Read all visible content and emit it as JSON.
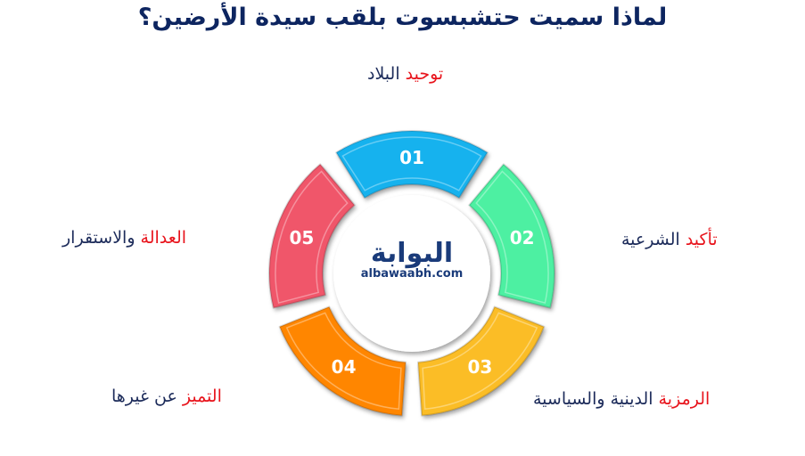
{
  "title": "لماذا سميت حتشبسوت بلقب سيدة الأرضين؟",
  "segments": [
    {
      "num": "01",
      "color": "#19b2ee",
      "label_hl": "توحيد",
      "label_rest": "البلاد"
    },
    {
      "num": "02",
      "color": "#4df0a2",
      "label_hl": "تأكيد",
      "label_rest": "الشرعية"
    },
    {
      "num": "03",
      "color": "#fbbd26",
      "label_hl": "الرمزية",
      "label_rest": "الدينية والسياسية"
    },
    {
      "num": "04",
      "color": "#ff8606",
      "label_hl": "التميز",
      "label_rest": "عن غيرها"
    },
    {
      "num": "05",
      "color": "#f0566a",
      "label_hl": "العدالة",
      "label_rest": "والاستقرار"
    }
  ],
  "logo": {
    "arabic": "البوابة",
    "latin": "albawaabh.com"
  },
  "colors": {
    "title": "#0d2560",
    "highlight": "#e8141c",
    "text": "#1c2b5a"
  }
}
